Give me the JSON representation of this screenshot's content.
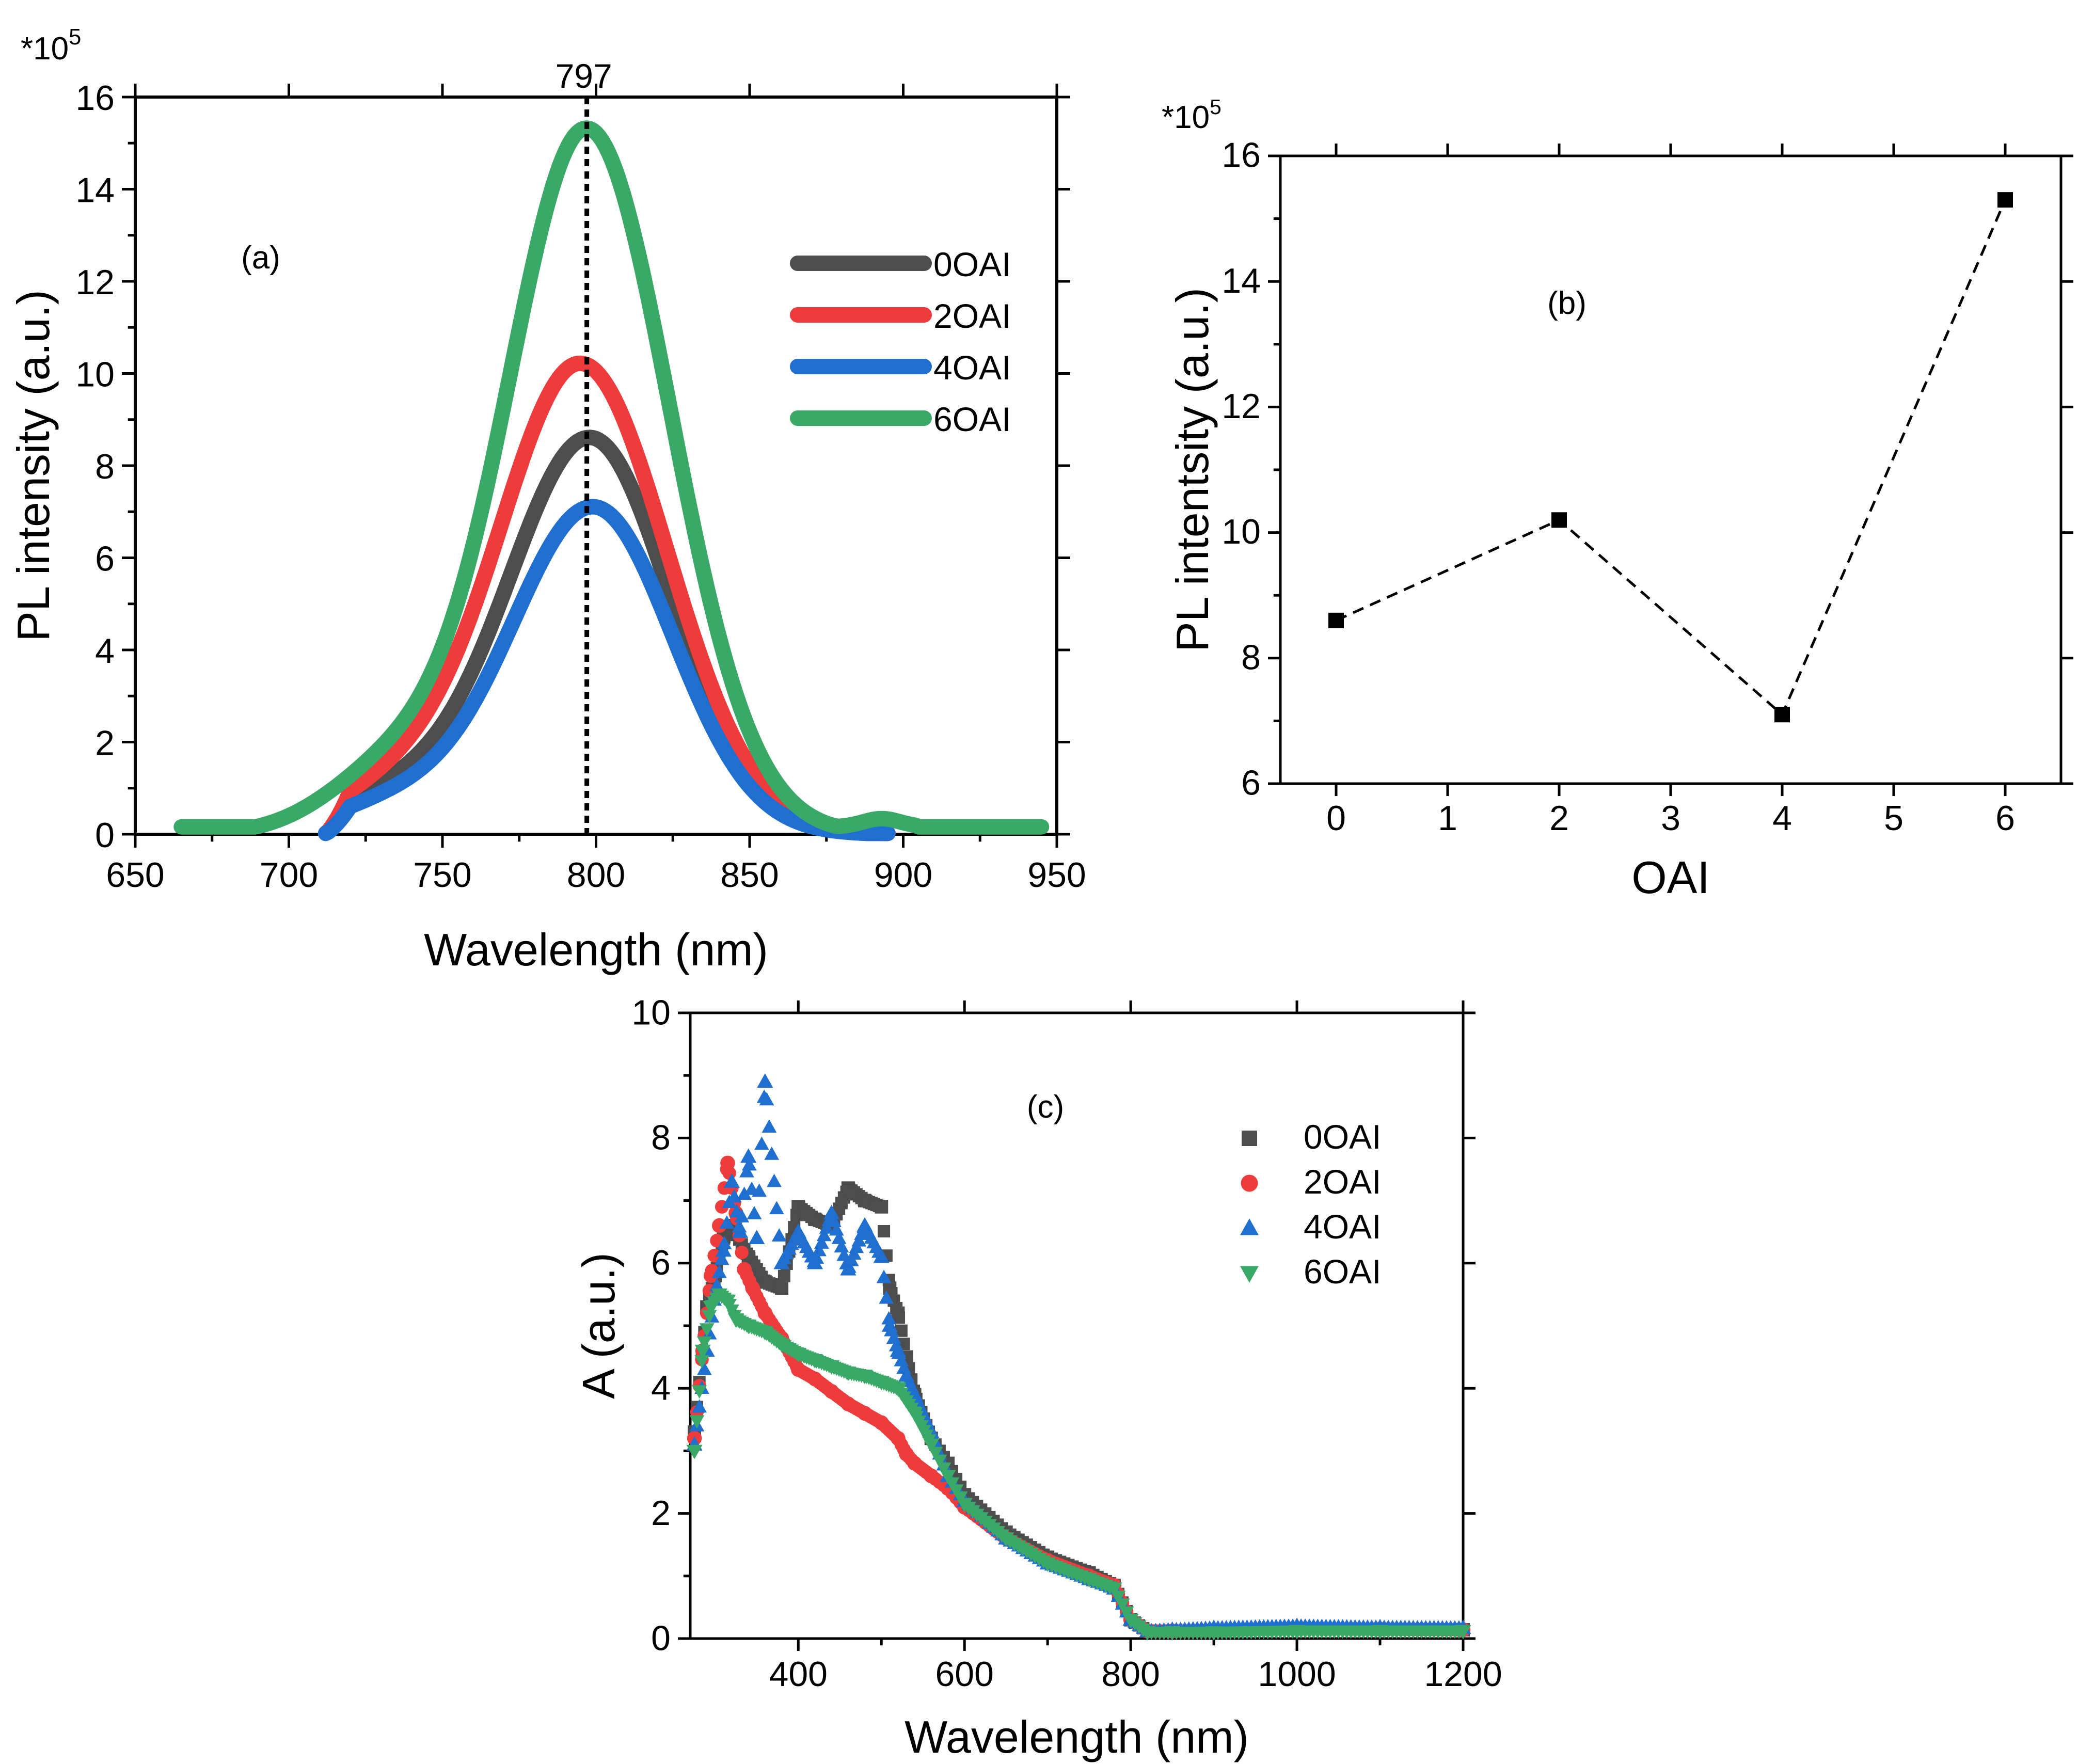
{
  "figure": {
    "panels": [
      "(a)",
      "(b)",
      "(c)"
    ]
  },
  "chart_data": [
    {
      "panel": "(a)",
      "type": "line",
      "xlabel": "Wavelength (nm)",
      "ylabel": "PL intensity (a.u.)",
      "multiplier": {
        "base": "*10",
        "exp": "5"
      },
      "xlim": [
        650,
        950
      ],
      "ylim": [
        0,
        16
      ],
      "xticks": [
        650,
        700,
        750,
        800,
        850,
        900,
        950
      ],
      "yticks": [
        0,
        2,
        4,
        6,
        8,
        10,
        12,
        14,
        16
      ],
      "annotation": {
        "label": "797",
        "x": 797
      },
      "legend_position": "top-right",
      "series": [
        {
          "name": "0OAI",
          "color": "#4d4d4d",
          "peak": 8.6,
          "center": 798,
          "sigL": 27,
          "sigR": 26,
          "onset": 712,
          "baseline": 0.02,
          "tailEnd": 895
        },
        {
          "name": "2OAI",
          "color": "#ee3b3b",
          "peak": 10.2,
          "center": 795,
          "sigL": 27,
          "sigR": 28,
          "onset": 712,
          "baseline": 0.02,
          "tailEnd": 895
        },
        {
          "name": "4OAI",
          "color": "#1f6fd1",
          "peak": 7.1,
          "center": 799,
          "sigL": 27,
          "sigR": 26,
          "onset": 712,
          "baseline": 0.02,
          "tailEnd": 895
        },
        {
          "name": "6OAI",
          "color": "#3aa866",
          "peak": 15.3,
          "center": 797,
          "sigL": 26,
          "sigR": 27,
          "onset": 665,
          "baseline": 0.16,
          "tailEnd": 945
        }
      ]
    },
    {
      "panel": "(b)",
      "type": "scatter",
      "xlabel": "OAI",
      "ylabel": "PL intentsity (a.u.)",
      "multiplier": {
        "base": "*10",
        "exp": "5"
      },
      "xlim": [
        -0.5,
        6.5
      ],
      "ylim": [
        6,
        16
      ],
      "xticks": [
        0,
        1,
        2,
        3,
        4,
        5,
        6
      ],
      "yticks": [
        6,
        8,
        10,
        12,
        14,
        16
      ],
      "x": [
        0,
        2,
        4,
        6
      ],
      "y": [
        8.6,
        10.2,
        7.1,
        15.3
      ],
      "line_style": "dashed",
      "color": "#000000"
    },
    {
      "panel": "(c)",
      "type": "scatter",
      "xlabel": "Wavelength (nm)",
      "ylabel": "A (a.u.)",
      "xlim": [
        270,
        1200
      ],
      "ylim": [
        0,
        10
      ],
      "xticks": [
        400,
        600,
        800,
        1000,
        1200
      ],
      "yticks": [
        0,
        2,
        4,
        6,
        8,
        10
      ],
      "legend_position": "top-right",
      "series": [
        {
          "name": "0OAI",
          "marker": "square",
          "color": "#4d4d4d",
          "x": [
            275,
            290,
            300,
            310,
            320,
            340,
            360,
            380,
            400,
            420,
            440,
            460,
            480,
            500,
            510,
            520,
            530,
            540,
            560,
            580,
            600,
            650,
            700,
            750,
            780,
            800,
            820,
            850,
            900,
            1000,
            1100,
            1200
          ],
          "y": [
            3.3,
            5.3,
            5.8,
            6.4,
            6.6,
            6.1,
            5.7,
            5.6,
            6.9,
            6.7,
            6.6,
            7.2,
            7.0,
            6.9,
            5.6,
            5.2,
            4.5,
            3.9,
            3.2,
            2.8,
            2.3,
            1.7,
            1.3,
            1.05,
            0.85,
            0.3,
            0.12,
            0.12,
            0.13,
            0.16,
            0.15,
            0.14
          ]
        },
        {
          "name": "2OAI",
          "marker": "circle",
          "color": "#ee3b3b",
          "x": [
            275,
            285,
            295,
            305,
            315,
            325,
            335,
            345,
            360,
            380,
            400,
            420,
            440,
            460,
            480,
            500,
            520,
            530,
            540,
            560,
            580,
            600,
            650,
            700,
            750,
            780,
            800,
            820,
            850,
            900,
            1000,
            1100,
            1200
          ],
          "y": [
            3.2,
            4.6,
            5.8,
            6.6,
            7.6,
            6.8,
            5.9,
            5.6,
            5.2,
            4.8,
            4.3,
            4.15,
            3.95,
            3.75,
            3.6,
            3.45,
            3.2,
            2.95,
            2.8,
            2.6,
            2.4,
            2.1,
            1.6,
            1.25,
            1.0,
            0.85,
            0.3,
            0.12,
            0.12,
            0.13,
            0.16,
            0.15,
            0.14
          ]
        },
        {
          "name": "4OAI",
          "marker": "triangle-up",
          "color": "#1f6fd1",
          "x": [
            275,
            290,
            300,
            310,
            320,
            330,
            340,
            350,
            360,
            380,
            400,
            420,
            440,
            460,
            480,
            500,
            510,
            520,
            530,
            540,
            560,
            580,
            600,
            650,
            700,
            750,
            780,
            800,
            820,
            850,
            900,
            1000,
            1100,
            1200
          ],
          "y": [
            3.1,
            4.6,
            5.5,
            6.2,
            7.3,
            6.5,
            7.7,
            6.4,
            8.9,
            6.0,
            6.5,
            6.0,
            6.8,
            5.9,
            6.6,
            6.1,
            5.0,
            4.6,
            4.2,
            3.9,
            3.3,
            2.6,
            2.2,
            1.6,
            1.2,
            0.95,
            0.8,
            0.3,
            0.12,
            0.14,
            0.17,
            0.2,
            0.18,
            0.17
          ]
        },
        {
          "name": "6OAI",
          "marker": "triangle-down",
          "color": "#3aa866",
          "x": [
            275,
            285,
            295,
            305,
            315,
            325,
            340,
            360,
            380,
            400,
            420,
            440,
            460,
            480,
            500,
            520,
            540,
            560,
            580,
            600,
            650,
            700,
            750,
            780,
            800,
            820,
            850,
            900,
            1000,
            1100,
            1200
          ],
          "y": [
            3.0,
            4.6,
            5.3,
            5.5,
            5.4,
            5.1,
            5.0,
            4.9,
            4.7,
            4.55,
            4.45,
            4.35,
            4.25,
            4.2,
            4.1,
            4.0,
            3.6,
            3.1,
            2.6,
            2.15,
            1.6,
            1.2,
            0.95,
            0.8,
            0.3,
            0.1,
            0.1,
            0.1,
            0.12,
            0.12,
            0.12
          ]
        }
      ]
    }
  ]
}
